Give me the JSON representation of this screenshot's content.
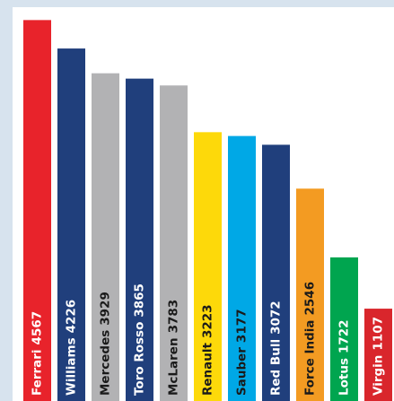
{
  "chart_data": {
    "type": "bar",
    "categories": [
      "Ferrari",
      "Williams",
      "Mercedes",
      "Toro Rosso",
      "McLaren",
      "Renault",
      "Sauber",
      "Red Bull",
      "Force India",
      "Lotus",
      "Virgin"
    ],
    "values": [
      4567,
      4226,
      3929,
      3865,
      3783,
      3223,
      3177,
      3072,
      2546,
      1722,
      1107
    ],
    "colors": [
      "#e8232b",
      "#203f7c",
      "#b2b2b4",
      "#203f7c",
      "#b2b2b4",
      "#fdd90a",
      "#00a8e6",
      "#203f7c",
      "#f39b22",
      "#00a54f",
      "#d9262c"
    ],
    "ylim": [
      0,
      4700
    ]
  }
}
